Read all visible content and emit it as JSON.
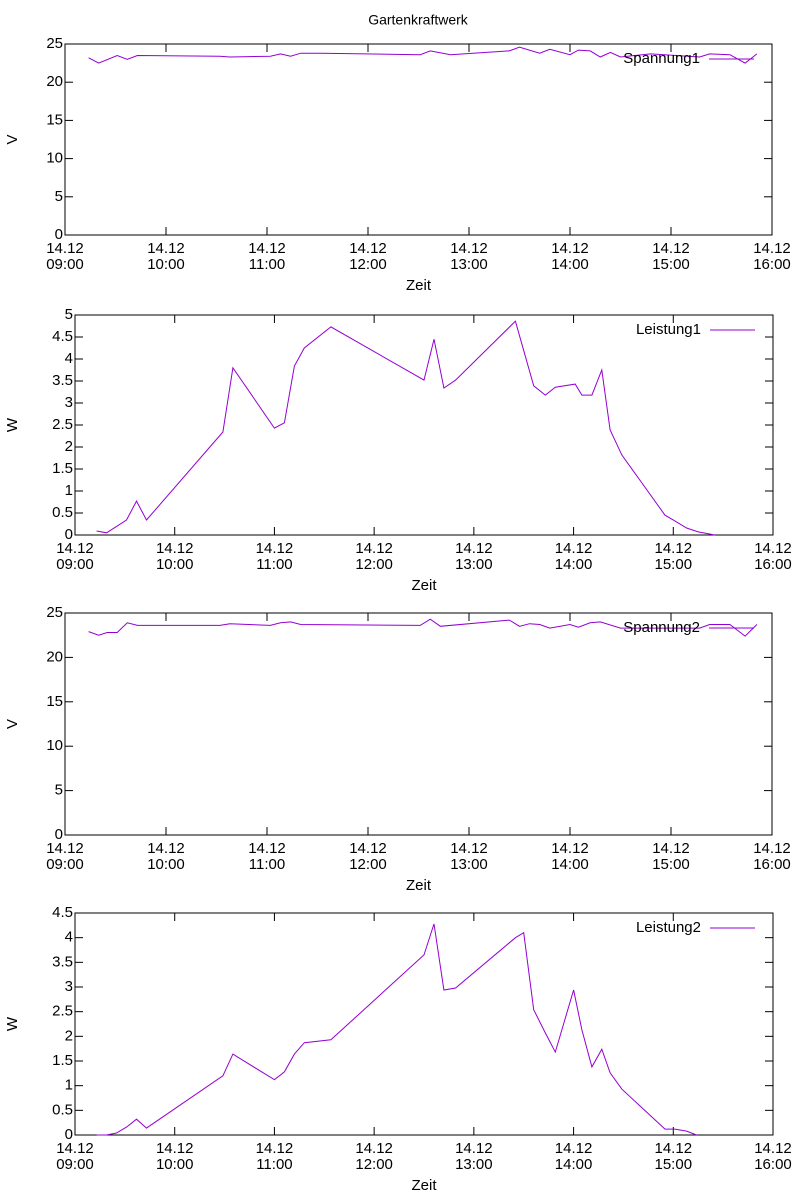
{
  "chart_data": [
    {
      "type": "line",
      "title": "Gartenkraftwerk",
      "xlabel": "Zeit",
      "ylabel": "V",
      "legend": "top right",
      "xlim": [
        "14.12 09:00",
        "14.12 16:00"
      ],
      "xticks": [
        "14.12 09:00",
        "14.12 10:00",
        "14.12 11:00",
        "14.12 12:00",
        "14.12 13:00",
        "14.12 14:00",
        "14.12 15:00",
        "14.12 16:00"
      ],
      "ylim": [
        0,
        25
      ],
      "yticks": [
        0,
        5,
        10,
        15,
        20,
        25
      ],
      "x": [
        "14.12 09:14",
        "14.12 09:20",
        "14.12 09:31",
        "14.12 09:37",
        "14.12 09:43",
        "14.12 10:32",
        "14.12 10:38",
        "14.12 11:02",
        "14.12 11:08",
        "14.12 11:14",
        "14.12 11:20",
        "14.12 11:32",
        "14.12 12:31",
        "14.12 12:37",
        "14.12 12:49",
        "14.12 13:24",
        "14.12 13:30",
        "14.12 13:42",
        "14.12 13:48",
        "14.12 14:00",
        "14.12 14:05",
        "14.12 14:12",
        "14.12 14:18",
        "14.12 14:24",
        "14.12 14:30",
        "14.12 14:48",
        "14.12 15:17",
        "14.12 15:23",
        "14.12 15:35",
        "14.12 15:44",
        "14.12 15:51"
      ],
      "series": [
        {
          "name": "Spannung1",
          "color": "#9400d3",
          "values": [
            23.2,
            22.5,
            23.5,
            23.0,
            23.5,
            23.4,
            23.3,
            23.4,
            23.7,
            23.4,
            23.8,
            23.8,
            23.6,
            24.1,
            23.6,
            24.1,
            24.6,
            23.8,
            24.3,
            23.6,
            24.2,
            24.1,
            23.3,
            23.9,
            23.3,
            23.7,
            23.3,
            23.7,
            23.6,
            22.5,
            23.7
          ]
        }
      ]
    },
    {
      "type": "line",
      "xlabel": "Zeit",
      "ylabel": "W",
      "legend": "top right",
      "xlim": [
        "14.12 09:00",
        "14.12 16:00"
      ],
      "xticks": [
        "14.12 09:00",
        "14.12 10:00",
        "14.12 11:00",
        "14.12 12:00",
        "14.12 13:00",
        "14.12 14:00",
        "14.12 15:00",
        "14.12 16:00"
      ],
      "ylim": [
        0,
        5
      ],
      "yticks": [
        0,
        0.5,
        1,
        1.5,
        2,
        2.5,
        3,
        3.5,
        4,
        4.5,
        5
      ],
      "x": [
        "14.12 09:13",
        "14.12 09:19",
        "14.12 09:31",
        "14.12 09:37",
        "14.12 09:43",
        "14.12 10:29",
        "14.12 10:35",
        "14.12 11:00",
        "14.12 11:06",
        "14.12 11:12",
        "14.12 11:18",
        "14.12 11:34",
        "14.12 12:30",
        "14.12 12:36",
        "14.12 12:42",
        "14.12 12:49",
        "14.12 13:25",
        "14.12 13:36",
        "14.12 13:43",
        "14.12 13:49",
        "14.12 14:01",
        "14.12 14:05",
        "14.12 14:11",
        "14.12 14:17",
        "14.12 14:22",
        "14.12 14:29",
        "14.12 14:55",
        "14.12 15:01",
        "14.12 15:08",
        "14.12 15:15",
        "14.12 15:25"
      ],
      "series": [
        {
          "name": "Leistung1",
          "color": "#9400d3",
          "values": [
            0.09,
            0.05,
            0.34,
            0.77,
            0.34,
            2.34,
            3.8,
            2.43,
            2.55,
            3.84,
            4.25,
            4.73,
            3.52,
            4.45,
            3.34,
            3.52,
            4.86,
            3.39,
            3.18,
            3.36,
            3.43,
            3.18,
            3.18,
            3.75,
            2.39,
            1.82,
            0.45,
            0.32,
            0.16,
            0.07,
            0
          ]
        }
      ]
    },
    {
      "type": "line",
      "xlabel": "Zeit",
      "ylabel": "V",
      "legend": "top right",
      "xlim": [
        "14.12 09:00",
        "14.12 16:00"
      ],
      "xticks": [
        "14.12 09:00",
        "14.12 10:00",
        "14.12 11:00",
        "14.12 12:00",
        "14.12 13:00",
        "14.12 14:00",
        "14.12 15:00",
        "14.12 16:00"
      ],
      "ylim": [
        0,
        25
      ],
      "yticks": [
        0,
        5,
        10,
        15,
        20,
        25
      ],
      "x": [
        "14.12 09:14",
        "14.12 09:20",
        "14.12 09:25",
        "14.12 09:31",
        "14.12 09:37",
        "14.12 09:43",
        "14.12 10:32",
        "14.12 10:38",
        "14.12 11:02",
        "14.12 11:08",
        "14.12 11:14",
        "14.12 11:20",
        "14.12 12:31",
        "14.12 12:37",
        "14.12 12:43",
        "14.12 13:24",
        "14.12 13:30",
        "14.12 13:36",
        "14.12 13:42",
        "14.12 13:48",
        "14.12 14:00",
        "14.12 14:05",
        "14.12 14:12",
        "14.12 14:18",
        "14.12 14:30",
        "14.12 15:17",
        "14.12 15:23",
        "14.12 15:35",
        "14.12 15:44",
        "14.12 15:51"
      ],
      "series": [
        {
          "name": "Spannung2",
          "color": "#9400d3",
          "values": [
            22.9,
            22.5,
            22.8,
            22.8,
            23.9,
            23.6,
            23.6,
            23.8,
            23.6,
            23.9,
            24.0,
            23.7,
            23.6,
            24.3,
            23.5,
            24.2,
            23.5,
            23.8,
            23.7,
            23.3,
            23.7,
            23.4,
            23.9,
            24.0,
            23.3,
            23.3,
            23.7,
            23.7,
            22.4,
            23.7
          ]
        }
      ]
    },
    {
      "type": "line",
      "xlabel": "Zeit",
      "ylabel": "W",
      "legend": "top right",
      "xlim": [
        "14.12 09:00",
        "14.12 16:00"
      ],
      "xticks": [
        "14.12 09:00",
        "14.12 10:00",
        "14.12 11:00",
        "14.12 12:00",
        "14.12 13:00",
        "14.12 14:00",
        "14.12 15:00",
        "14.12 16:00"
      ],
      "ylim": [
        0,
        4.5
      ],
      "yticks": [
        0,
        0.5,
        1,
        1.5,
        2,
        2.5,
        3,
        3.5,
        4,
        4.5
      ],
      "x": [
        "14.12 09:13",
        "14.12 09:19",
        "14.12 09:25",
        "14.12 09:31",
        "14.12 09:37",
        "14.12 09:43",
        "14.12 10:29",
        "14.12 10:35",
        "14.12 11:00",
        "14.12 11:06",
        "14.12 11:12",
        "14.12 11:18",
        "14.12 11:34",
        "14.12 12:30",
        "14.12 12:36",
        "14.12 12:42",
        "14.12 12:49",
        "14.12 13:25",
        "14.12 13:30",
        "14.12 13:36",
        "14.12 13:43",
        "14.12 13:49",
        "14.12 14:00",
        "14.12 14:05",
        "14.12 14:11",
        "14.12 14:17",
        "14.12 14:22",
        "14.12 14:29",
        "14.12 14:55",
        "14.12 15:01",
        "14.12 15:08",
        "14.12 15:14"
      ],
      "series": [
        {
          "name": "Leistung2",
          "color": "#9400d3",
          "values": [
            0,
            0,
            0.04,
            0.16,
            0.32,
            0.14,
            1.2,
            1.64,
            1.12,
            1.28,
            1.64,
            1.87,
            1.93,
            3.65,
            4.28,
            2.94,
            2.98,
            4.0,
            4.1,
            2.54,
            2.07,
            1.68,
            2.94,
            2.13,
            1.38,
            1.74,
            1.26,
            0.93,
            0.12,
            0.12,
            0.08,
            0
          ]
        }
      ]
    }
  ]
}
